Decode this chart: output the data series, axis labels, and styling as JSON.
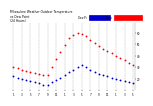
{
  "title": "Milwaukee Weather Outdoor Temperature\nvs Dew Point\n(24 Hours)",
  "title_fontsize": 2.2,
  "bg_color": "#ffffff",
  "plot_bg": "#ffffff",
  "grid_color": "#aaaaaa",
  "x_labels": [
    "1",
    "3",
    "5",
    "7",
    "9",
    "11",
    "1",
    "3",
    "5",
    "7",
    "9",
    "11",
    "1",
    "3",
    "5"
  ],
  "x_ticks": [
    0,
    2,
    4,
    6,
    8,
    10,
    12,
    14,
    16,
    18,
    20,
    22,
    24,
    26,
    28
  ],
  "temp_x": [
    0,
    1,
    2,
    3,
    4,
    5,
    6,
    7,
    8,
    9,
    10,
    11,
    12,
    13,
    14,
    15,
    16,
    17,
    18,
    19,
    20,
    21,
    22,
    23,
    24,
    25,
    26,
    27,
    28
  ],
  "temp_y": [
    30,
    29,
    28,
    27,
    26,
    25,
    24,
    23,
    23,
    30,
    37,
    43,
    49,
    55,
    58,
    60,
    59,
    57,
    54,
    51,
    48,
    46,
    44,
    42,
    40,
    38,
    36,
    34,
    32
  ],
  "dew_x": [
    0,
    1,
    2,
    3,
    4,
    5,
    6,
    7,
    8,
    9,
    10,
    11,
    12,
    13,
    14,
    15,
    16,
    17,
    18,
    19,
    20,
    21,
    22,
    23,
    24,
    25,
    26,
    27,
    28
  ],
  "dew_y": [
    22,
    21,
    20,
    19,
    18,
    17,
    16,
    15,
    15,
    17,
    19,
    21,
    23,
    26,
    28,
    30,
    32,
    30,
    28,
    26,
    24,
    23,
    22,
    21,
    20,
    19,
    18,
    17,
    16
  ],
  "temp_color": "#ff0000",
  "dew_color": "#0000cc",
  "black_color": "#000000",
  "marker_size": 1.8,
  "ylim": [
    10,
    68
  ],
  "xlim": [
    -0.5,
    28.5
  ],
  "yticks": [
    20,
    30,
    40,
    50,
    60
  ],
  "legend_blue_color": "#0000cc",
  "legend_red_color": "#ff0000",
  "legend_text_color": "#000000"
}
